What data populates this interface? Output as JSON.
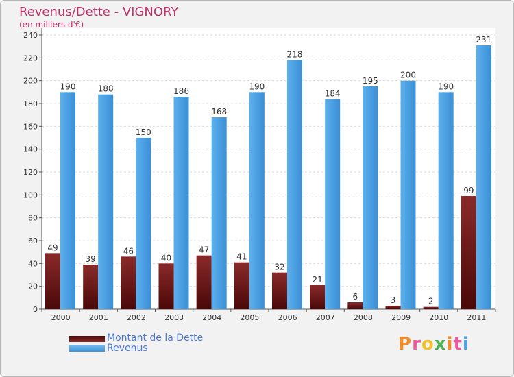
{
  "chart_data": {
    "type": "bar",
    "title": "Revenus/Dette - VIGNORY",
    "subtitle": "(en milliers d'€)",
    "categories": [
      "2000",
      "2001",
      "2002",
      "2003",
      "2004",
      "2005",
      "2006",
      "2007",
      "2008",
      "2009",
      "2010",
      "2011"
    ],
    "series": [
      {
        "name": "Montant de la Dette",
        "color": "#7a1a1a",
        "values": [
          49,
          39,
          46,
          40,
          47,
          41,
          32,
          21,
          6,
          3,
          2,
          99
        ]
      },
      {
        "name": "Revenus",
        "color": "#4ea3e4",
        "values": [
          190,
          188,
          150,
          186,
          168,
          190,
          218,
          184,
          195,
          200,
          190,
          231
        ]
      }
    ],
    "ylim": [
      0,
      240
    ],
    "yticks": [
      0,
      20,
      40,
      60,
      80,
      100,
      120,
      140,
      160,
      180,
      200,
      220,
      240
    ],
    "grid": true,
    "legend_position": "bottom-left"
  },
  "logo": {
    "text": "Proxiti",
    "colors": [
      "#f28c28",
      "#e85a9a",
      "#f2c12e",
      "#4caf50",
      "#f28c28",
      "#e85a9a",
      "#4ea3e4"
    ]
  }
}
